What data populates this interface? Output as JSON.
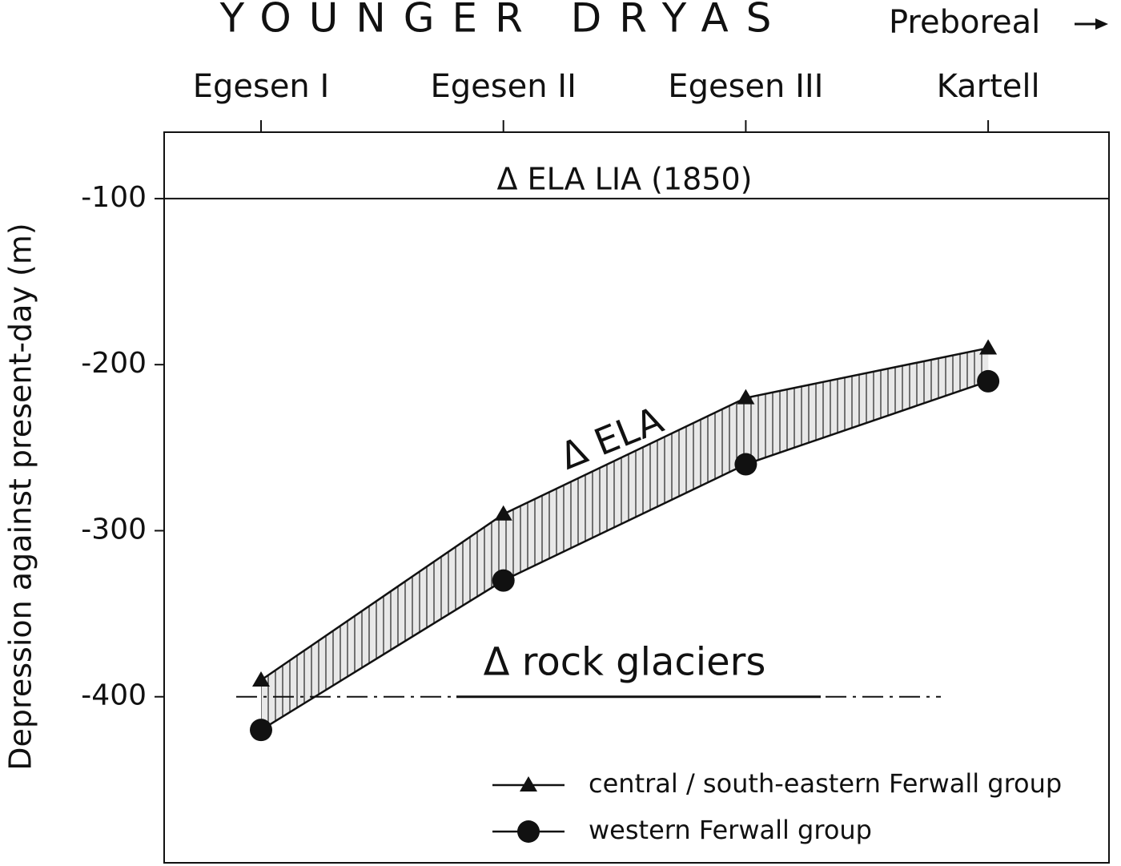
{
  "chart_data": {
    "type": "line",
    "title": "YOUNGER DRYAS",
    "subtitle": "Preboreal",
    "ylabel": "Depression against present-day (m)",
    "categories": [
      "Egesen I",
      "Egesen II",
      "Egesen III",
      "Kartell"
    ],
    "series": [
      {
        "name": "central / south-eastern Ferwall group",
        "marker": "triangle",
        "color": "#111111",
        "values": [
          -390,
          -290,
          -220,
          -190
        ]
      },
      {
        "name": "western Ferwall group",
        "marker": "circle",
        "color": "#111111",
        "values": [
          -420,
          -330,
          -260,
          -210
        ]
      }
    ],
    "reference_lines": [
      {
        "label": "Δ ELA LIA (1850)",
        "value": -100,
        "style": "solid"
      },
      {
        "label": "Δ rock glaciers",
        "value": -400,
        "style": "dashdot"
      }
    ],
    "annotations": [
      "Δ ELA"
    ],
    "ylim": [
      -500,
      -60
    ],
    "yticks": [
      -100,
      -200,
      -300,
      -400
    ],
    "grid": false,
    "legend": "lower right"
  }
}
